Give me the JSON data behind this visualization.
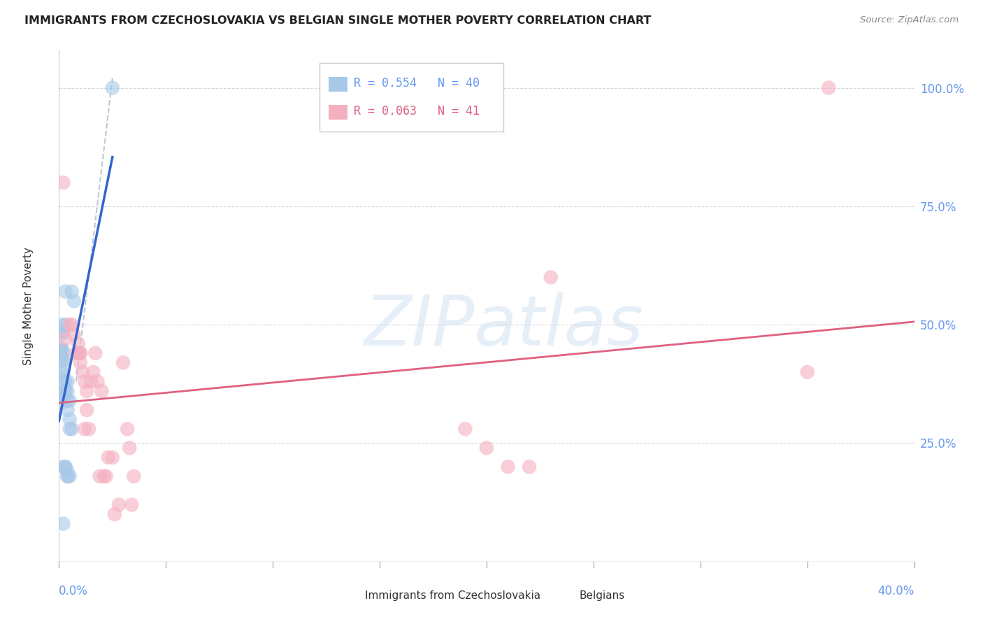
{
  "title": "IMMIGRANTS FROM CZECHOSLOVAKIA VS BELGIAN SINGLE MOTHER POVERTY CORRELATION CHART",
  "source": "Source: ZipAtlas.com",
  "ylabel": "Single Mother Poverty",
  "R_blue": 0.554,
  "N_blue": 40,
  "R_pink": 0.063,
  "N_pink": 41,
  "blue_color": "#a8c8e8",
  "pink_color": "#f4b0c0",
  "blue_line_color": "#3366cc",
  "pink_line_color": "#e06080",
  "right_tick_color": "#6699ee",
  "xlabel_color": "#6699ee",
  "watermark_text": "ZIPatlas",
  "background_color": "#ffffff",
  "grid_color": "#d8d8d8",
  "blue_scatter_x": [
    0.001,
    0.002,
    0.001,
    0.002,
    0.003,
    0.001,
    0.001,
    0.002,
    0.002,
    0.003,
    0.002,
    0.002,
    0.001,
    0.003,
    0.004,
    0.003,
    0.003,
    0.004,
    0.004,
    0.005,
    0.004,
    0.005,
    0.005,
    0.006,
    0.004,
    0.003,
    0.004,
    0.005,
    0.002,
    0.001,
    0.001,
    0.001,
    0.002,
    0.002,
    0.003,
    0.004,
    0.003,
    0.006,
    0.007,
    0.025
  ],
  "blue_scatter_y": [
    0.335,
    0.485,
    0.48,
    0.5,
    0.5,
    0.445,
    0.445,
    0.445,
    0.425,
    0.425,
    0.4,
    0.38,
    0.4,
    0.38,
    0.38,
    0.36,
    0.36,
    0.36,
    0.34,
    0.34,
    0.32,
    0.3,
    0.28,
    0.28,
    0.18,
    0.2,
    0.18,
    0.18,
    0.08,
    0.45,
    0.43,
    0.35,
    0.35,
    0.2,
    0.2,
    0.19,
    0.57,
    0.57,
    0.55,
    1.0
  ],
  "pink_scatter_x": [
    0.002,
    0.003,
    0.006,
    0.005,
    0.007,
    0.008,
    0.009,
    0.01,
    0.009,
    0.01,
    0.01,
    0.011,
    0.012,
    0.012,
    0.013,
    0.013,
    0.014,
    0.015,
    0.016,
    0.017,
    0.018,
    0.019,
    0.02,
    0.021,
    0.022,
    0.023,
    0.025,
    0.026,
    0.028,
    0.03,
    0.032,
    0.033,
    0.034,
    0.035,
    0.19,
    0.2,
    0.21,
    0.22,
    0.23,
    0.35,
    0.36
  ],
  "pink_scatter_y": [
    0.8,
    0.47,
    0.5,
    0.5,
    0.48,
    0.44,
    0.44,
    0.44,
    0.46,
    0.44,
    0.42,
    0.4,
    0.38,
    0.28,
    0.36,
    0.32,
    0.28,
    0.38,
    0.4,
    0.44,
    0.38,
    0.18,
    0.36,
    0.18,
    0.18,
    0.22,
    0.22,
    0.1,
    0.12,
    0.42,
    0.28,
    0.24,
    0.12,
    0.18,
    0.28,
    0.24,
    0.2,
    0.2,
    0.6,
    0.4,
    1.0
  ]
}
